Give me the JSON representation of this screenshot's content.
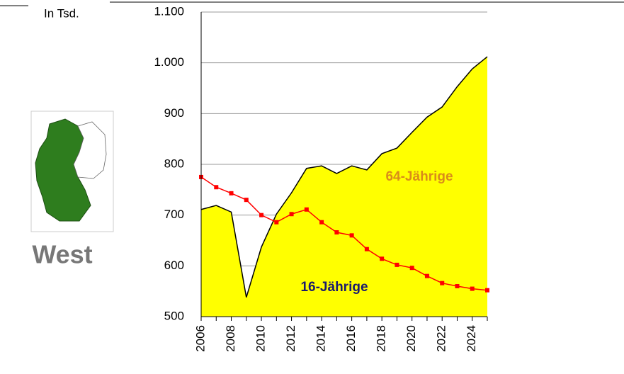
{
  "chart_data": {
    "type": "area-line",
    "unit_label": "In Tsd.",
    "region_label": "West",
    "x": [
      2006,
      2007,
      2008,
      2009,
      2010,
      2011,
      2012,
      2013,
      2014,
      2015,
      2016,
      2017,
      2018,
      2019,
      2020,
      2021,
      2022,
      2023,
      2024,
      2025
    ],
    "series": [
      {
        "name": "64-Jährige",
        "kind": "area",
        "color": "#ffff00",
        "line_color": "#000000",
        "label_color": "#d98c1a",
        "values": [
          711,
          719,
          706,
          538,
          637,
          702,
          744,
          792,
          797,
          782,
          797,
          789,
          821,
          832,
          863,
          893,
          913,
          953,
          988,
          1012
        ]
      },
      {
        "name": "16-Jährige",
        "kind": "line",
        "color": "#ff0000",
        "label_color": "#1a1a6e",
        "values": [
          775,
          755,
          743,
          730,
          700,
          686,
          702,
          711,
          686,
          666,
          660,
          633,
          614,
          602,
          596,
          580,
          566,
          560,
          555,
          552
        ]
      }
    ],
    "xlim": [
      2006,
      2025
    ],
    "xticks": [
      2006,
      2008,
      2010,
      2012,
      2014,
      2016,
      2018,
      2020,
      2022,
      2024
    ],
    "ylim": [
      500,
      1100
    ],
    "yticks": [
      500,
      600,
      700,
      800,
      900,
      {
        "value": 1000,
        "label": "1.000"
      },
      {
        "value": 1100,
        "label": "1.100"
      }
    ],
    "grid": true
  }
}
